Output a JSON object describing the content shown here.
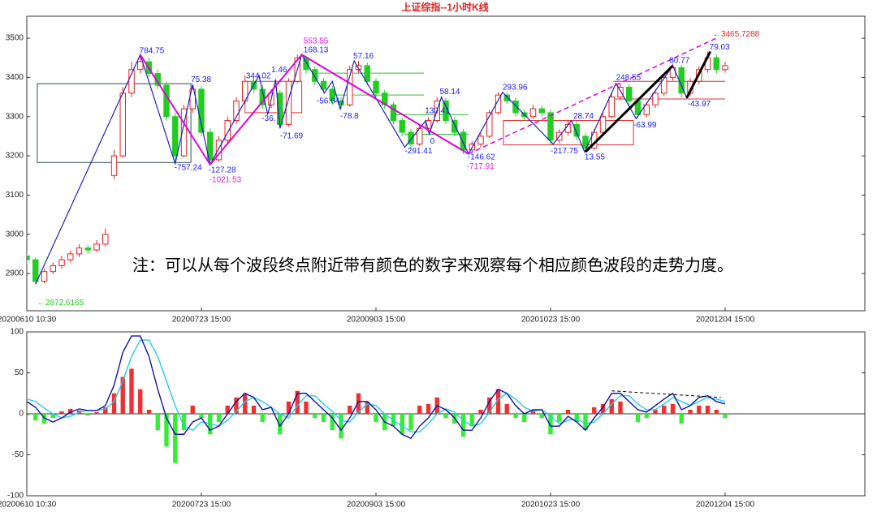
{
  "chart_data": [
    {
      "type": "candlestick",
      "title": "上证综指--1小时K线",
      "note": "注：可以从每个波段终点附近带有颜色的数字来观察每个相应颜色波段的走势力度。",
      "xlim": [
        0,
        96
      ],
      "xticks": [
        {
          "value": 0,
          "label": "20200610 10:30"
        },
        {
          "value": 20,
          "label": "20200723 15:00"
        },
        {
          "value": 40,
          "label": "20200903 15:00"
        },
        {
          "value": 60,
          "label": "20201023 15:00"
        },
        {
          "value": 80,
          "label": "20201204 15:00"
        }
      ],
      "ylim": [
        2805,
        3556
      ],
      "yticks": [
        2900,
        3000,
        3100,
        3200,
        3300,
        3400,
        3500
      ],
      "up_color": "#e82020",
      "down_color": "#22cc22",
      "open": [
        2945,
        2935,
        2880,
        2905,
        2920,
        2935,
        2950,
        2965,
        2960,
        2975,
        3150,
        3200,
        3360,
        3420,
        3440,
        3410,
        3380,
        3300,
        3200,
        3320,
        3370,
        3260,
        3190,
        3240,
        3290,
        3340,
        3390,
        3370,
        3330,
        3360,
        3280,
        3390,
        3450,
        3420,
        3390,
        3370,
        3340,
        3330,
        3420,
        3430,
        3390,
        3360,
        3330,
        3290,
        3260,
        3230,
        3270,
        3290,
        3340,
        3290,
        3260,
        3215,
        3230,
        3250,
        3310,
        3355,
        3340,
        3310,
        3300,
        3320,
        3310,
        3240,
        3260,
        3280,
        3250,
        3220,
        3260,
        3300,
        3350,
        3375,
        3340,
        3305,
        3330,
        3360,
        3400,
        3425,
        3360,
        3390,
        3420,
        3450,
        3420
      ],
      "high": [
        2955,
        2940,
        2912,
        2928,
        2945,
        2958,
        2975,
        2972,
        2985,
        3015,
        3215,
        3375,
        3440,
        3458,
        3450,
        3420,
        3390,
        3310,
        3330,
        3382,
        3378,
        3270,
        3250,
        3300,
        3350,
        3405,
        3400,
        3380,
        3370,
        3368,
        3398,
        3458,
        3455,
        3428,
        3398,
        3378,
        3350,
        3430,
        3442,
        3438,
        3398,
        3368,
        3338,
        3298,
        3268,
        3278,
        3298,
        3350,
        3348,
        3298,
        3268,
        3238,
        3258,
        3318,
        3362,
        3362,
        3348,
        3318,
        3330,
        3328,
        3318,
        3268,
        3290,
        3288,
        3258,
        3268,
        3310,
        3360,
        3385,
        3382,
        3348,
        3338,
        3368,
        3410,
        3435,
        3432,
        3398,
        3428,
        3466,
        3458,
        3440
      ],
      "low": [
        2925,
        2873,
        2875,
        2898,
        2912,
        2928,
        2942,
        2950,
        2955,
        2968,
        3140,
        3195,
        3350,
        3410,
        3400,
        3370,
        3290,
        3180,
        3195,
        3310,
        3250,
        3178,
        3185,
        3232,
        3282,
        3332,
        3360,
        3320,
        3322,
        3270,
        3275,
        3385,
        3410,
        3380,
        3360,
        3330,
        3318,
        3325,
        3412,
        3380,
        3350,
        3320,
        3280,
        3250,
        3220,
        3225,
        3262,
        3285,
        3280,
        3250,
        3205,
        3208,
        3222,
        3245,
        3305,
        3332,
        3300,
        3290,
        3295,
        3300,
        3228,
        3232,
        3252,
        3240,
        3210,
        3215,
        3252,
        3295,
        3342,
        3330,
        3295,
        3298,
        3322,
        3352,
        3392,
        3348,
        3352,
        3382,
        3412,
        3410,
        3412
      ],
      "close": [
        2935,
        2880,
        2905,
        2920,
        2935,
        2950,
        2965,
        2960,
        2975,
        3000,
        3200,
        3360,
        3420,
        3440,
        3410,
        3380,
        3300,
        3200,
        3320,
        3370,
        3260,
        3190,
        3240,
        3290,
        3340,
        3390,
        3370,
        3330,
        3360,
        3280,
        3390,
        3450,
        3420,
        3390,
        3370,
        3340,
        3330,
        3420,
        3430,
        3390,
        3360,
        3330,
        3290,
        3260,
        3230,
        3270,
        3290,
        3340,
        3290,
        3260,
        3215,
        3230,
        3250,
        3310,
        3355,
        3340,
        3310,
        3300,
        3320,
        3310,
        3240,
        3260,
        3280,
        3250,
        3220,
        3260,
        3300,
        3350,
        3375,
        3340,
        3305,
        3330,
        3360,
        3400,
        3425,
        3360,
        3390,
        3420,
        3450,
        3420,
        3430
      ],
      "boxes": [
        {
          "color": "#2f4f4f",
          "x": [
            1.2,
            18.8
          ],
          "y": [
            3183,
            3384
          ]
        },
        {
          "color": "#e03030",
          "x": [
            25,
            31.5
          ],
          "y": [
            3310,
            3390
          ]
        },
        {
          "color": "#e03030",
          "x": [
            54.6,
            69.5
          ],
          "y": [
            3228,
            3290
          ]
        }
      ],
      "levels": [
        {
          "color": "#30c030",
          "x": [
            33,
            45.5
          ],
          "y": 3411
        },
        {
          "color": "#30c030",
          "x": [
            35.2,
            45.5
          ],
          "y": 3355
        },
        {
          "color": "#30c030",
          "x": [
            42,
            50.6
          ],
          "y": 3305
        },
        {
          "color": "#30c030",
          "x": [
            43.3,
            50.6
          ],
          "y": 3255
        },
        {
          "color": "#e03030",
          "x": [
            67.2,
            80
          ],
          "y": 3390
        },
        {
          "color": "#e03030",
          "x": [
            67.2,
            80
          ],
          "y": 3345
        }
      ],
      "lines": [
        {
          "color": "#2020c0",
          "width": 1.2,
          "dashed": false,
          "x": [
            1,
            13,
            17,
            19,
            21,
            26.6,
            27.6,
            28.5,
            29,
            31.5,
            34.1,
            35,
            35.9,
            37.5,
            43.3,
            45.7,
            46.1,
            47.5,
            50.6,
            54.5,
            60.3,
            62.4,
            63.9,
            67.5,
            69.8,
            74,
            75.6,
            78.3
          ],
          "y": [
            2873,
            3458,
            3180,
            3382,
            3178,
            3405,
            3305,
            3395,
            3270,
            3458,
            3360,
            3390,
            3320,
            3442,
            3222,
            3290,
            3255,
            3350,
            3205,
            3362,
            3230,
            3290,
            3210,
            3385,
            3295,
            3430,
            3348,
            3466
          ]
        },
        {
          "color": "#e000e0",
          "width": 2,
          "dashed": false,
          "x": [
            13,
            21,
            31.5,
            50.6
          ],
          "y": [
            3458,
            3178,
            3458,
            3205
          ]
        },
        {
          "color": "#e000e0",
          "width": 1.5,
          "dashed": true,
          "x": [
            50.6,
            79
          ],
          "y": [
            3205,
            3500
          ]
        },
        {
          "color": "#000000",
          "width": 3,
          "dashed": false,
          "x": [
            64,
            74
          ],
          "y": [
            3210,
            3430
          ]
        },
        {
          "color": "#000000",
          "width": 3,
          "dashed": false,
          "x": [
            75.6,
            78.3
          ],
          "y": [
            3348,
            3466
          ]
        }
      ],
      "annotations": [
        {
          "text": "784.75",
          "x": 12.9,
          "y": 3467,
          "color": "#1a1aff"
        },
        {
          "text": "75.38",
          "x": 18.8,
          "y": 3394,
          "color": "#1a1aff"
        },
        {
          "text": "-757.24",
          "x": 16.9,
          "y": 3169,
          "color": "#1a1aff"
        },
        {
          "text": "-127.28",
          "x": 20.8,
          "y": 3163,
          "color": "#1a1aff"
        },
        {
          "text": "-1021.53",
          "x": 20.9,
          "y": 3138,
          "color": "#e020e0"
        },
        {
          "text": "344.02",
          "x": 25.1,
          "y": 3403,
          "color": "#1a1aff"
        },
        {
          "text": "1.46",
          "x": 28.0,
          "y": 3419,
          "color": "#1a1aff"
        },
        {
          "text": "553.55",
          "x": 31.7,
          "y": 3492,
          "color": "#e020e0"
        },
        {
          "text": "168.13",
          "x": 31.7,
          "y": 3469,
          "color": "#1a1aff"
        },
        {
          "text": "-36.",
          "x": 26.9,
          "y": 3295,
          "color": "#1a1aff"
        },
        {
          "text": "-71.69",
          "x": 29.0,
          "y": 3250,
          "color": "#1a1aff"
        },
        {
          "text": "57.16",
          "x": 37.4,
          "y": 3454,
          "color": "#1a1aff"
        },
        {
          "text": "-56.64",
          "x": 33.2,
          "y": 3339,
          "color": "#1a1aff"
        },
        {
          "text": "-78.8",
          "x": 35.9,
          "y": 3301,
          "color": "#1a1aff"
        },
        {
          "text": "130.41",
          "x": 45.6,
          "y": 3314,
          "color": "#1a1aff"
        },
        {
          "text": "58.14",
          "x": 47.3,
          "y": 3363,
          "color": "#1a1aff"
        },
        {
          "text": "0",
          "x": 46.2,
          "y": 3237,
          "color": "#1a1aff"
        },
        {
          "text": "-291.41",
          "x": 43.3,
          "y": 3212,
          "color": "#1a1aff"
        },
        {
          "text": "-146.62",
          "x": 50.5,
          "y": 3196,
          "color": "#1a1aff"
        },
        {
          "text": "-717.91",
          "x": 50.4,
          "y": 3173,
          "color": "#e020e0"
        },
        {
          "text": "293.96",
          "x": 54.5,
          "y": 3374,
          "color": "#1a1aff"
        },
        {
          "text": "28.74",
          "x": 62.6,
          "y": 3301,
          "color": "#1a1aff"
        },
        {
          "text": "-217.75",
          "x": 60.0,
          "y": 3212,
          "color": "#1a1aff"
        },
        {
          "text": "13.55",
          "x": 63.9,
          "y": 3196,
          "color": "#1a1aff"
        },
        {
          "text": "248.55",
          "x": 67.5,
          "y": 3399,
          "color": "#1a1aff"
        },
        {
          "text": "-63.99",
          "x": 69.5,
          "y": 3278,
          "color": "#1a1aff"
        },
        {
          "text": "80.77",
          "x": 73.6,
          "y": 3442,
          "color": "#1a1aff"
        },
        {
          "text": "79.03",
          "x": 78.2,
          "y": 3477,
          "color": "#1a1aff"
        },
        {
          "text": "-43.97",
          "x": 75.7,
          "y": 3332,
          "color": "#1a1aff"
        },
        {
          "text": "←3465.7288",
          "x": 78.6,
          "y": 3510,
          "color": "#e82020"
        },
        {
          "text": "←2872.6165",
          "x": 1.2,
          "y": 2825,
          "color": "#22cc22"
        }
      ]
    },
    {
      "type": "macd",
      "xlim": [
        0,
        96
      ],
      "xticks": [
        {
          "value": 0,
          "label": "20200610 10:30"
        },
        {
          "value": 20,
          "label": "20200723 15:00"
        },
        {
          "value": 40,
          "label": "20200903 15:00"
        },
        {
          "value": 60,
          "label": "20201023 15:00"
        },
        {
          "value": 80,
          "label": "20201204 15:00"
        }
      ],
      "ylim": [
        -100,
        100
      ],
      "yticks": [
        -100,
        -50,
        0,
        50,
        100
      ],
      "pos_color": "#f03030",
      "neg_color": "#33ee33",
      "histogram": [
        -2,
        -8,
        -12,
        -5,
        3,
        6,
        4,
        -2,
        2,
        8,
        25,
        45,
        55,
        30,
        5,
        -20,
        -40,
        -60,
        -20,
        10,
        -5,
        -25,
        -10,
        10,
        20,
        25,
        10,
        -10,
        0,
        -25,
        15,
        28,
        15,
        -5,
        -10,
        -20,
        -30,
        10,
        25,
        15,
        -10,
        -20,
        -15,
        -25,
        -20,
        10,
        12,
        20,
        -5,
        -12,
        -28,
        -15,
        5,
        20,
        30,
        12,
        -5,
        -10,
        5,
        -5,
        -25,
        -10,
        5,
        -10,
        -20,
        8,
        12,
        18,
        15,
        0,
        -10,
        -5,
        5,
        10,
        12,
        -12,
        5,
        10,
        10,
        5,
        -5
      ],
      "dif": {
        "color": "#1010b0",
        "values": [
          15,
          8,
          -5,
          -10,
          -5,
          2,
          6,
          4,
          4,
          10,
          35,
          75,
          95,
          95,
          70,
          30,
          -5,
          -25,
          -25,
          -10,
          -5,
          -20,
          -15,
          0,
          15,
          25,
          20,
          5,
          8,
          -15,
          0,
          25,
          25,
          15,
          5,
          -5,
          -20,
          -5,
          15,
          15,
          5,
          -10,
          -15,
          -25,
          -30,
          -15,
          -5,
          10,
          5,
          -5,
          -20,
          -20,
          -5,
          15,
          30,
          25,
          10,
          0,
          5,
          5,
          -15,
          -15,
          -3,
          -10,
          -20,
          -5,
          8,
          25,
          25,
          15,
          5,
          2,
          10,
          18,
          25,
          5,
          10,
          20,
          22,
          15,
          12
        ]
      },
      "dea": {
        "color": "#22ccee",
        "values": [
          18,
          15,
          7,
          0,
          -5,
          -3,
          2,
          4,
          4,
          6,
          15,
          40,
          70,
          90,
          90,
          70,
          40,
          10,
          -15,
          -20,
          -10,
          -12,
          -15,
          -8,
          3,
          15,
          20,
          15,
          8,
          0,
          -5,
          10,
          22,
          22,
          12,
          3,
          -8,
          -10,
          2,
          12,
          10,
          0,
          -8,
          -15,
          -22,
          -22,
          -12,
          0,
          6,
          2,
          -8,
          -15,
          -12,
          2,
          18,
          25,
          18,
          8,
          3,
          5,
          -3,
          -12,
          -8,
          -6,
          -12,
          -10,
          0,
          12,
          22,
          22,
          12,
          5,
          5,
          12,
          20,
          15,
          10,
          15,
          20,
          18,
          15
        ]
      },
      "trend": {
        "x": [
          67,
          79.5
        ],
        "y": [
          28,
          20
        ]
      }
    }
  ]
}
